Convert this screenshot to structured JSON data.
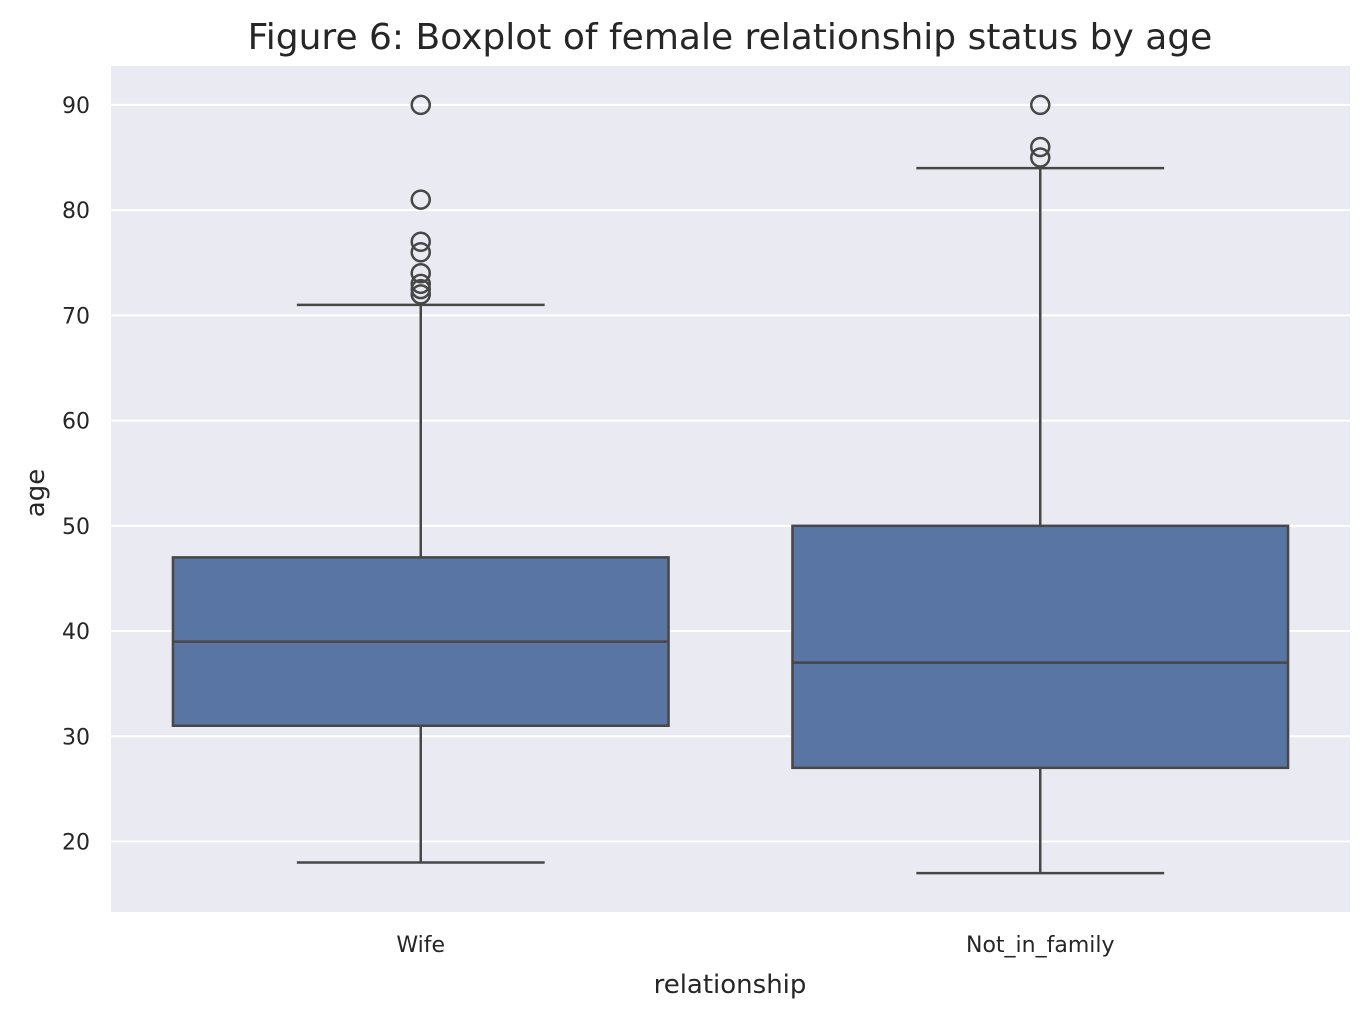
{
  "chart_data": {
    "type": "boxplot",
    "title": "Figure 6: Boxplot of female relationship status by age",
    "xlabel": "relationship",
    "ylabel": "age",
    "ylim": [
      13.3,
      93.7
    ],
    "yticks": [
      20,
      30,
      40,
      50,
      60,
      70,
      80,
      90
    ],
    "grid": true,
    "categories": [
      "Wife",
      "Not_in_family"
    ],
    "boxes": [
      {
        "category": "Wife",
        "whisker_low": 18,
        "q1": 31,
        "median": 39,
        "q3": 47,
        "whisker_high": 71,
        "outliers": [
          72,
          72.5,
          73,
          74,
          76,
          77,
          81,
          90
        ]
      },
      {
        "category": "Not_in_family",
        "whisker_low": 17,
        "q1": 27,
        "median": 37,
        "q3": 50,
        "whisker_high": 84,
        "outliers": [
          85,
          86,
          90
        ]
      }
    ],
    "colors": {
      "box_fill": "#5975a4",
      "line": "#474747",
      "plot_background": "#eaeaf2",
      "grid": "#ffffff",
      "text": "#262626"
    }
  }
}
